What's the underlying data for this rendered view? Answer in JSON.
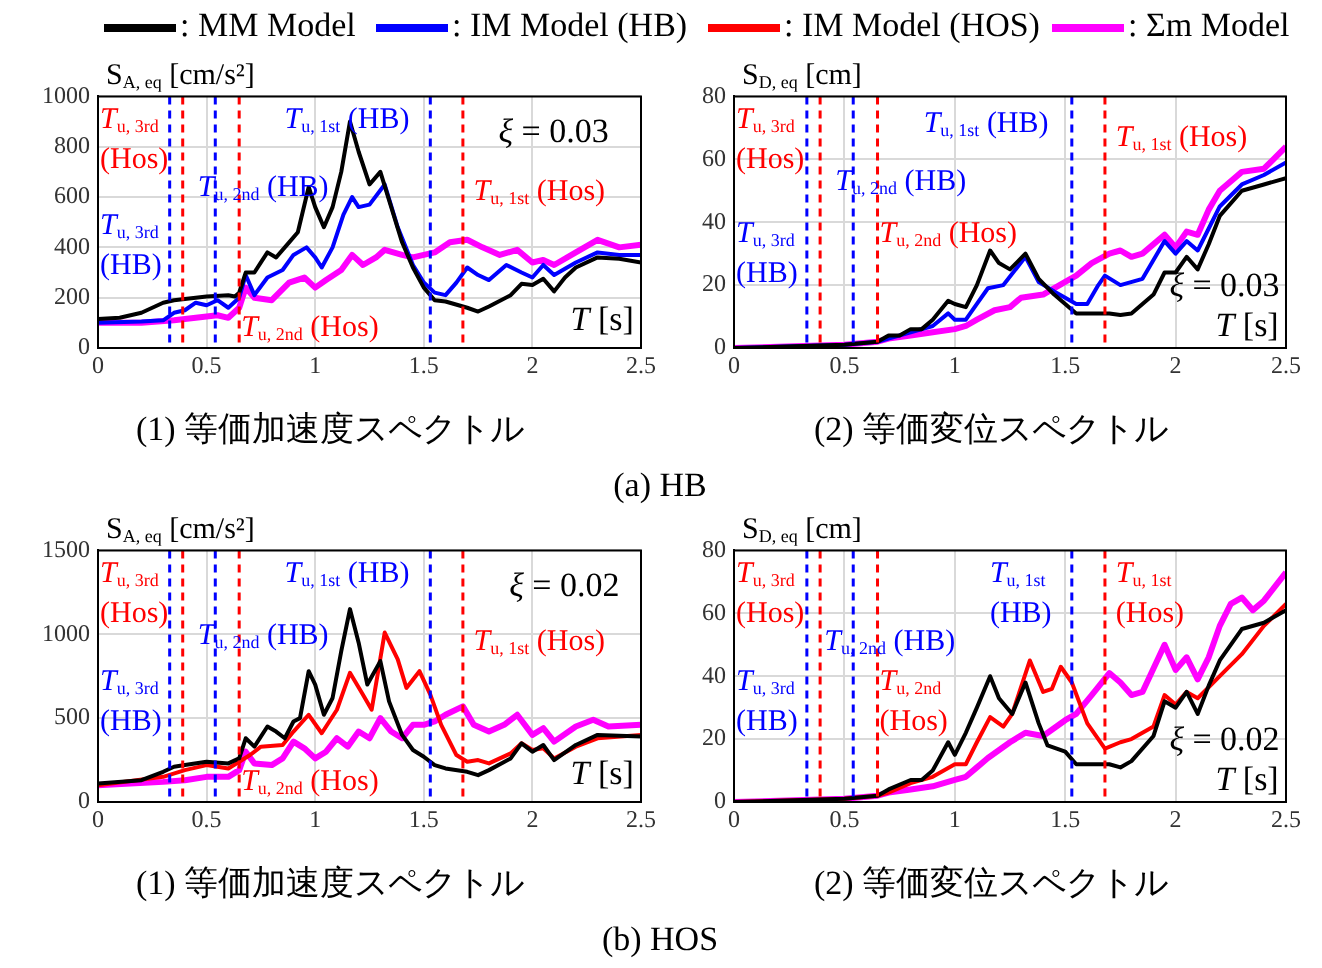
{
  "chart_data": [
    {
      "type": "line",
      "title": "(1) 等価加速度スペクトル",
      "xlabel": "T [s]",
      "ylabel": "S$_{A, eq}$ [cm/s²]",
      "xlim": [
        0,
        2.5
      ],
      "xticks": [
        0,
        0.5,
        1,
        1.5,
        2,
        2.5
      ],
      "ylim": [
        0,
        1000
      ],
      "yticks": [
        0,
        200,
        400,
        600,
        800,
        1000
      ],
      "grid": true,
      "legend": "top",
      "marker": "none",
      "line_style": "solid",
      "annotations": [
        "ξ = 0.03",
        "(a) HB"
      ],
      "ref_lines": [
        {
          "axis": "x",
          "value": 0.33,
          "label": "T$_{u, 3rd}$ (HB)",
          "color": "#0000ff",
          "line_style": "dashed"
        },
        {
          "axis": "x",
          "value": 0.39,
          "label": "T$_{u, 3rd}$ (Hos)",
          "color": "#ff0000",
          "line_style": "dashed"
        },
        {
          "axis": "x",
          "value": 0.54,
          "label": "T$_{u, 2nd}$ (HB)",
          "color": "#0000ff",
          "line_style": "dashed"
        },
        {
          "axis": "x",
          "value": 0.65,
          "label": "T$_{u, 2nd}$ (Hos)",
          "color": "#ff0000",
          "line_style": "dashed"
        },
        {
          "axis": "x",
          "value": 1.53,
          "label": "T$_{u, 1st}$ (HB)",
          "color": "#0000ff",
          "line_style": "dashed"
        },
        {
          "axis": "x",
          "value": 1.68,
          "label": "T$_{u, 1st}$ (Hos)",
          "color": "#ff0000",
          "line_style": "dashed"
        }
      ],
      "series": [
        {
          "name": ": MM Model",
          "color": "#000000",
          "x": [
            0,
            0.1,
            0.2,
            0.3,
            0.35,
            0.4,
            0.5,
            0.6,
            0.63,
            0.65,
            0.68,
            0.72,
            0.75,
            0.78,
            0.82,
            0.88,
            0.92,
            0.97,
            1.0,
            1.04,
            1.08,
            1.12,
            1.16,
            1.2,
            1.25,
            1.3,
            1.35,
            1.4,
            1.45,
            1.5,
            1.55,
            1.6,
            1.7,
            1.75,
            1.8,
            1.9,
            1.95,
            2.0,
            2.05,
            2.1,
            2.15,
            2.2,
            2.3,
            2.4,
            2.5
          ],
          "values": [
            115,
            120,
            140,
            180,
            190,
            195,
            205,
            210,
            205,
            220,
            300,
            300,
            340,
            380,
            360,
            420,
            460,
            640,
            560,
            480,
            560,
            700,
            900,
            780,
            650,
            700,
            560,
            420,
            320,
            240,
            190,
            185,
            160,
            145,
            165,
            210,
            255,
            250,
            275,
            225,
            280,
            320,
            360,
            355,
            340
          ]
        },
        {
          "name": ": IM Model (HB)",
          "color": "#0000ff",
          "x": [
            0,
            0.2,
            0.3,
            0.35,
            0.4,
            0.45,
            0.5,
            0.55,
            0.6,
            0.65,
            0.68,
            0.72,
            0.78,
            0.85,
            0.9,
            0.96,
            1.0,
            1.03,
            1.08,
            1.13,
            1.17,
            1.2,
            1.25,
            1.32,
            1.38,
            1.45,
            1.5,
            1.55,
            1.6,
            1.65,
            1.7,
            1.75,
            1.8,
            1.88,
            1.95,
            2.0,
            2.05,
            2.1,
            2.2,
            2.3,
            2.4,
            2.5
          ],
          "values": [
            100,
            105,
            110,
            140,
            150,
            180,
            170,
            190,
            160,
            200,
            290,
            210,
            280,
            310,
            370,
            400,
            360,
            320,
            400,
            530,
            600,
            560,
            570,
            650,
            480,
            330,
            260,
            220,
            210,
            260,
            320,
            290,
            270,
            330,
            300,
            280,
            330,
            290,
            340,
            380,
            370,
            370
          ]
        },
        {
          "name": ": Σm Model",
          "color": "#ff00ff",
          "x": [
            0,
            0.2,
            0.35,
            0.45,
            0.55,
            0.6,
            0.65,
            0.68,
            0.72,
            0.8,
            0.88,
            0.95,
            1.0,
            1.05,
            1.12,
            1.17,
            1.22,
            1.28,
            1.32,
            1.4,
            1.45,
            1.55,
            1.62,
            1.7,
            1.77,
            1.85,
            1.93,
            2.0,
            2.05,
            2.1,
            2.2,
            2.3,
            2.4,
            2.5
          ],
          "values": [
            100,
            100,
            110,
            120,
            130,
            120,
            160,
            240,
            200,
            190,
            260,
            280,
            240,
            270,
            310,
            370,
            330,
            360,
            390,
            370,
            360,
            380,
            420,
            430,
            400,
            370,
            390,
            340,
            350,
            330,
            380,
            430,
            400,
            410
          ]
        }
      ]
    },
    {
      "type": "line",
      "title": "(2) 等価変位スペクトル",
      "xlabel": "T [s]",
      "ylabel": "S$_{D, eq}$ [cm]",
      "xlim": [
        0,
        2.5
      ],
      "xticks": [
        0,
        0.5,
        1,
        1.5,
        2,
        2.5
      ],
      "ylim": [
        0,
        80
      ],
      "yticks": [
        0,
        20,
        40,
        60,
        80
      ],
      "grid": true,
      "marker": "none",
      "line_style": "solid",
      "annotations": [
        "ξ = 0.03"
      ],
      "ref_lines": [
        {
          "axis": "x",
          "value": 0.33,
          "label": "T$_{u, 3rd}$ (HB)",
          "color": "#0000ff",
          "line_style": "dashed"
        },
        {
          "axis": "x",
          "value": 0.39,
          "label": "T$_{u, 3rd}$ (Hos)",
          "color": "#ff0000",
          "line_style": "dashed"
        },
        {
          "axis": "x",
          "value": 0.54,
          "label": "T$_{u, 2nd}$ (HB)",
          "color": "#0000ff",
          "line_style": "dashed"
        },
        {
          "axis": "x",
          "value": 0.65,
          "label": "T$_{u, 2nd}$ (Hos)",
          "color": "#ff0000",
          "line_style": "dashed"
        },
        {
          "axis": "x",
          "value": 1.53,
          "label": "T$_{u, 1st}$ (HB)",
          "color": "#0000ff",
          "line_style": "dashed"
        },
        {
          "axis": "x",
          "value": 1.68,
          "label": "T$_{u, 1st}$ (Hos)",
          "color": "#ff0000",
          "line_style": "dashed"
        }
      ],
      "series": [
        {
          "color": "#000000",
          "x": [
            0,
            0.5,
            0.65,
            0.7,
            0.75,
            0.8,
            0.85,
            0.9,
            0.97,
            1.0,
            1.05,
            1.1,
            1.16,
            1.2,
            1.25,
            1.32,
            1.38,
            1.45,
            1.55,
            1.65,
            1.7,
            1.75,
            1.8,
            1.9,
            1.95,
            2.0,
            2.05,
            2.1,
            2.15,
            2.2,
            2.3,
            2.4,
            2.5
          ],
          "values": [
            0,
            1,
            2,
            4,
            4,
            6,
            6,
            9,
            15,
            14,
            13,
            20,
            31,
            27,
            25,
            30,
            22,
            17,
            11,
            11,
            11,
            10.5,
            11,
            17,
            24,
            24,
            29,
            25,
            33,
            42,
            50,
            52,
            54
          ]
        },
        {
          "color": "#0000ff",
          "x": [
            0,
            0.5,
            0.65,
            0.7,
            0.8,
            0.9,
            0.97,
            1.0,
            1.05,
            1.1,
            1.15,
            1.22,
            1.32,
            1.38,
            1.45,
            1.55,
            1.6,
            1.65,
            1.68,
            1.75,
            1.85,
            1.95,
            2.0,
            2.05,
            2.1,
            2.15,
            2.2,
            2.3,
            2.4,
            2.5
          ],
          "values": [
            0,
            1,
            2,
            3,
            5,
            7,
            11,
            9,
            9,
            14,
            19,
            20,
            29,
            21,
            18,
            14,
            14,
            20,
            23,
            20,
            22,
            34,
            30,
            34,
            31,
            38,
            45,
            52,
            55,
            59
          ]
        },
        {
          "color": "#ff00ff",
          "x": [
            0,
            0.5,
            0.65,
            0.7,
            0.8,
            0.9,
            1.0,
            1.05,
            1.1,
            1.18,
            1.25,
            1.3,
            1.4,
            1.5,
            1.55,
            1.62,
            1.7,
            1.75,
            1.8,
            1.85,
            1.95,
            2.0,
            2.05,
            2.1,
            2.15,
            2.2,
            2.3,
            2.4,
            2.5
          ],
          "values": [
            0,
            1,
            2,
            3,
            4,
            5,
            6,
            7,
            9,
            12,
            13,
            16,
            17,
            21,
            23,
            27,
            30,
            31,
            29,
            30,
            36,
            32,
            37,
            36,
            44,
            50,
            56,
            57,
            64
          ]
        }
      ]
    },
    {
      "type": "line",
      "title": "(1) 等価加速度スペクトル",
      "xlabel": "T [s]",
      "ylabel": "S$_{A, eq}$ [cm/s²]",
      "xlim": [
        0,
        2.5
      ],
      "xticks": [
        0,
        0.5,
        1,
        1.5,
        2,
        2.5
      ],
      "ylim": [
        0,
        1500
      ],
      "yticks": [
        0,
        500,
        1000,
        1500
      ],
      "grid": true,
      "legend": "top",
      "marker": "none",
      "line_style": "solid",
      "annotations": [
        "ξ = 0.02",
        "(b) HOS"
      ],
      "ref_lines": [
        {
          "axis": "x",
          "value": 0.33,
          "label": "T$_{u, 3rd}$ (HB)",
          "color": "#0000ff",
          "line_style": "dashed"
        },
        {
          "axis": "x",
          "value": 0.39,
          "label": "T$_{u, 3rd}$ (Hos)",
          "color": "#ff0000",
          "line_style": "dashed"
        },
        {
          "axis": "x",
          "value": 0.54,
          "label": "T$_{u, 2nd}$ (HB)",
          "color": "#0000ff",
          "line_style": "dashed"
        },
        {
          "axis": "x",
          "value": 0.65,
          "label": "T$_{u, 2nd}$ (Hos)",
          "color": "#ff0000",
          "line_style": "dashed"
        },
        {
          "axis": "x",
          "value": 1.53,
          "label": "T$_{u, 1st}$ (HB)",
          "color": "#0000ff",
          "line_style": "dashed"
        },
        {
          "axis": "x",
          "value": 1.68,
          "label": "T$_{u, 1st}$ (Hos)",
          "color": "#ff0000",
          "line_style": "dashed"
        }
      ],
      "series": [
        {
          "color": "#000000",
          "x": [
            0,
            0.2,
            0.3,
            0.35,
            0.4,
            0.5,
            0.6,
            0.65,
            0.68,
            0.72,
            0.78,
            0.82,
            0.86,
            0.9,
            0.93,
            0.97,
            1.0,
            1.04,
            1.08,
            1.12,
            1.16,
            1.2,
            1.24,
            1.3,
            1.34,
            1.4,
            1.45,
            1.5,
            1.55,
            1.6,
            1.7,
            1.75,
            1.8,
            1.9,
            1.95,
            2.0,
            2.05,
            2.1,
            2.2,
            2.3,
            2.5
          ],
          "values": [
            110,
            130,
            180,
            210,
            220,
            240,
            230,
            260,
            380,
            330,
            450,
            420,
            380,
            480,
            500,
            780,
            700,
            520,
            620,
            900,
            1150,
            950,
            700,
            840,
            600,
            400,
            310,
            270,
            220,
            200,
            180,
            160,
            190,
            260,
            350,
            300,
            340,
            250,
            340,
            400,
            390
          ]
        },
        {
          "name": ": IM Model (HOS)",
          "color": "#ff0000",
          "x": [
            0,
            0.3,
            0.4,
            0.5,
            0.6,
            0.65,
            0.7,
            0.75,
            0.85,
            0.9,
            0.97,
            1.03,
            1.1,
            1.16,
            1.22,
            1.26,
            1.32,
            1.38,
            1.42,
            1.48,
            1.53,
            1.58,
            1.65,
            1.7,
            1.75,
            1.8,
            1.9,
            1.95,
            2.0,
            2.05,
            2.1,
            2.2,
            2.3,
            2.5
          ],
          "values": [
            100,
            150,
            190,
            220,
            200,
            240,
            280,
            330,
            340,
            420,
            520,
            410,
            550,
            770,
            640,
            550,
            1010,
            850,
            680,
            780,
            640,
            460,
            280,
            240,
            250,
            230,
            290,
            350,
            310,
            320,
            260,
            330,
            380,
            400
          ]
        },
        {
          "color": "#ff00ff",
          "x": [
            0,
            0.3,
            0.4,
            0.5,
            0.6,
            0.65,
            0.68,
            0.72,
            0.8,
            0.85,
            0.9,
            0.95,
            1.0,
            1.05,
            1.1,
            1.15,
            1.2,
            1.25,
            1.3,
            1.35,
            1.4,
            1.45,
            1.5,
            1.55,
            1.6,
            1.68,
            1.73,
            1.8,
            1.87,
            1.93,
            2.0,
            2.05,
            2.1,
            2.2,
            2.28,
            2.35,
            2.5
          ],
          "values": [
            100,
            120,
            130,
            150,
            150,
            190,
            300,
            230,
            220,
            260,
            360,
            320,
            260,
            300,
            380,
            330,
            420,
            380,
            500,
            420,
            380,
            460,
            460,
            480,
            520,
            570,
            460,
            420,
            460,
            520,
            400,
            440,
            360,
            450,
            490,
            450,
            460
          ]
        }
      ]
    },
    {
      "type": "line",
      "title": "(2) 等価変位スペクトル",
      "xlabel": "T [s]",
      "ylabel": "S$_{D, eq}$ [cm]",
      "xlim": [
        0,
        2.5
      ],
      "xticks": [
        0,
        0.5,
        1,
        1.5,
        2,
        2.5
      ],
      "ylim": [
        0,
        80
      ],
      "yticks": [
        0,
        20,
        40,
        60,
        80
      ],
      "grid": true,
      "marker": "none",
      "line_style": "solid",
      "annotations": [
        "ξ = 0.02"
      ],
      "ref_lines": [
        {
          "axis": "x",
          "value": 0.33,
          "label": "T$_{u, 3rd}$ (HB)",
          "color": "#0000ff",
          "line_style": "dashed"
        },
        {
          "axis": "x",
          "value": 0.39,
          "label": "T$_{u, 3rd}$ (Hos)",
          "color": "#ff0000",
          "line_style": "dashed"
        },
        {
          "axis": "x",
          "value": 0.54,
          "label": "T$_{u, 2nd}$ (HB)",
          "color": "#0000ff",
          "line_style": "dashed"
        },
        {
          "axis": "x",
          "value": 0.65,
          "label": "T$_{u, 2nd}$ (Hos)",
          "color": "#ff0000",
          "line_style": "dashed"
        },
        {
          "axis": "x",
          "value": 1.53,
          "label": "T$_{u, 1st}$ (HB)",
          "color": "#0000ff",
          "line_style": "dashed"
        },
        {
          "axis": "x",
          "value": 1.68,
          "label": "T$_{u, 1st}$ (Hos)",
          "color": "#ff0000",
          "line_style": "dashed"
        }
      ],
      "series": [
        {
          "color": "#000000",
          "x": [
            0,
            0.5,
            0.65,
            0.7,
            0.8,
            0.85,
            0.9,
            0.97,
            1.0,
            1.05,
            1.1,
            1.16,
            1.2,
            1.26,
            1.32,
            1.38,
            1.42,
            1.5,
            1.55,
            1.7,
            1.75,
            1.8,
            1.9,
            1.95,
            2.0,
            2.05,
            2.1,
            2.15,
            2.2,
            2.3,
            2.4,
            2.5
          ],
          "values": [
            0,
            1,
            2,
            4,
            7,
            7,
            10,
            19,
            15,
            22,
            30,
            40,
            33,
            28,
            38,
            25,
            18,
            16,
            12,
            12,
            11,
            13,
            21,
            32,
            30,
            35,
            28,
            37,
            45,
            55,
            57,
            61
          ]
        },
        {
          "color": "#ff0000",
          "x": [
            0,
            0.5,
            0.65,
            0.7,
            0.8,
            0.9,
            1.0,
            1.05,
            1.1,
            1.16,
            1.22,
            1.26,
            1.34,
            1.4,
            1.44,
            1.48,
            1.53,
            1.6,
            1.68,
            1.75,
            1.8,
            1.9,
            1.95,
            2.0,
            2.05,
            2.1,
            2.2,
            2.3,
            2.4,
            2.5
          ],
          "values": [
            0,
            1,
            2,
            3,
            6,
            8,
            12,
            12,
            19,
            27,
            24,
            28,
            45,
            35,
            36,
            43,
            38,
            25,
            17,
            19,
            20,
            24,
            34,
            31,
            35,
            33,
            40,
            47,
            56,
            63
          ]
        },
        {
          "color": "#ff00ff",
          "x": [
            0,
            0.5,
            0.65,
            0.7,
            0.8,
            0.9,
            1.0,
            1.05,
            1.1,
            1.15,
            1.25,
            1.32,
            1.4,
            1.5,
            1.55,
            1.62,
            1.7,
            1.75,
            1.8,
            1.85,
            1.95,
            2.0,
            2.05,
            2.1,
            2.15,
            2.2,
            2.25,
            2.3,
            2.35,
            2.4,
            2.5
          ],
          "values": [
            0,
            1,
            2,
            3,
            4,
            5,
            7,
            8,
            11,
            14,
            19,
            22,
            21,
            26,
            28,
            34,
            41,
            38,
            34,
            35,
            50,
            42,
            46,
            39,
            46,
            56,
            63,
            65,
            61,
            64,
            73
          ]
        }
      ]
    }
  ]
}
